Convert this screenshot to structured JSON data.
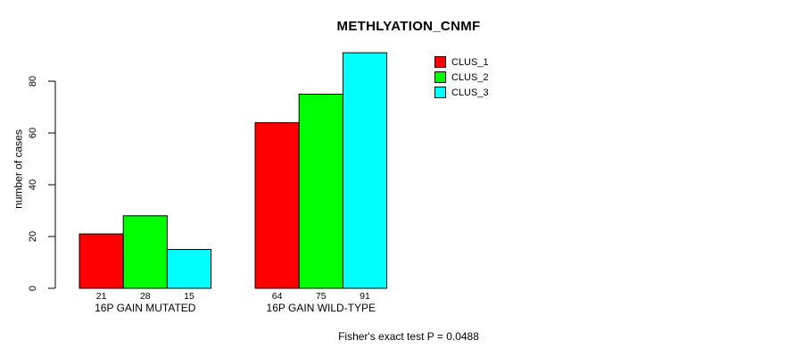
{
  "chart_data": {
    "type": "bar",
    "title": "METHLYATION_CNMF",
    "ylabel": "number of cases",
    "xlabel": "",
    "categories": [
      "16P GAIN MUTATED",
      "16P GAIN WILD-TYPE"
    ],
    "series": [
      {
        "name": "CLUS_1",
        "color": "#ff0000",
        "values": [
          21,
          64
        ]
      },
      {
        "name": "CLUS_2",
        "color": "#00ff00",
        "values": [
          28,
          75
        ]
      },
      {
        "name": "CLUS_3",
        "color": "#00ffff",
        "values": [
          15,
          91
        ]
      }
    ],
    "yticks": [
      0,
      20,
      40,
      60,
      80
    ],
    "grid": false,
    "legend_position": "top-right",
    "bar_value_labels_shown": true,
    "footnote": "Fisher's exact test P = 0.0488"
  },
  "colors": {
    "background": "#ffffff",
    "axis": "#000000",
    "text": "#000000",
    "bar_border": "#000000"
  }
}
